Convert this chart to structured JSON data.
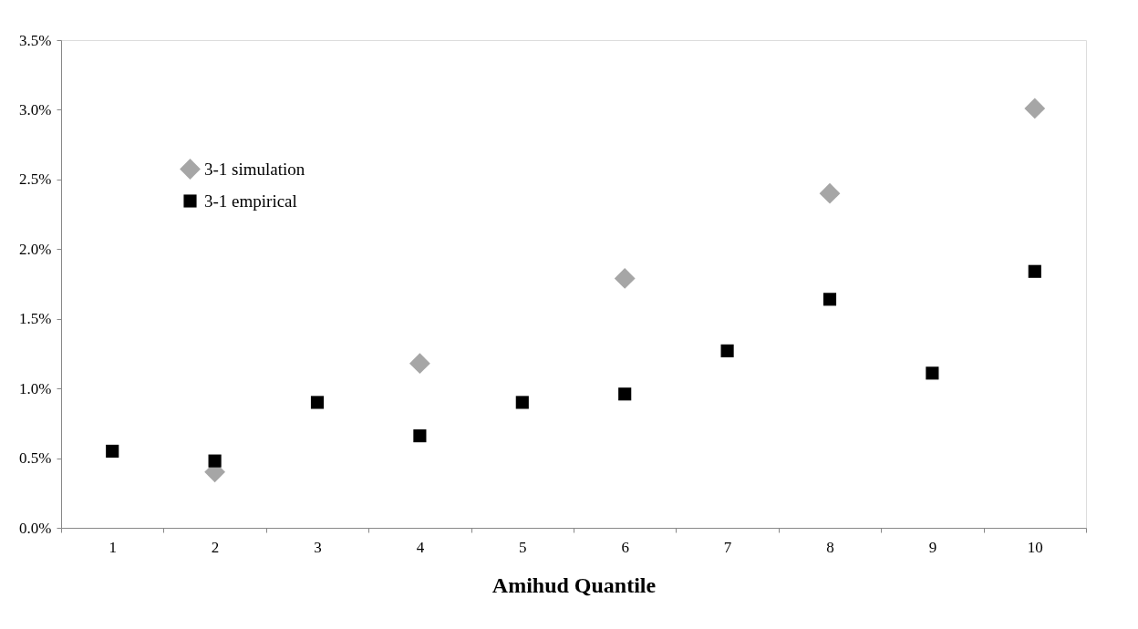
{
  "chart_data": {
    "type": "scatter",
    "xlabel": "Amihud Quantile",
    "categories": [
      "1",
      "2",
      "3",
      "4",
      "5",
      "6",
      "7",
      "8",
      "9",
      "10"
    ],
    "series": [
      {
        "name": "3-1 simulation",
        "color": "#a6a6a6",
        "marker": "diamond",
        "values": [
          null,
          0.4,
          null,
          1.18,
          null,
          1.79,
          null,
          2.4,
          null,
          3.01
        ]
      },
      {
        "name": "3-1 empirical",
        "color": "#000000",
        "marker": "square",
        "values": [
          0.55,
          0.48,
          0.9,
          0.66,
          0.9,
          0.96,
          1.27,
          1.64,
          1.11,
          1.84
        ]
      }
    ],
    "ylim": [
      0,
      3.5
    ],
    "yticks": [
      {
        "value": 0,
        "label": "0.0%"
      },
      {
        "value": 0.5,
        "label": "0.5%"
      },
      {
        "value": 1,
        "label": "1.0%"
      },
      {
        "value": 1.5,
        "label": "1.5%"
      },
      {
        "value": 2,
        "label": "2.0%"
      },
      {
        "value": 2.5,
        "label": "2.5%"
      },
      {
        "value": 3,
        "label": "3.0%"
      },
      {
        "value": 3.5,
        "label": "3.5%"
      }
    ],
    "legend": "top left",
    "grid": false
  }
}
